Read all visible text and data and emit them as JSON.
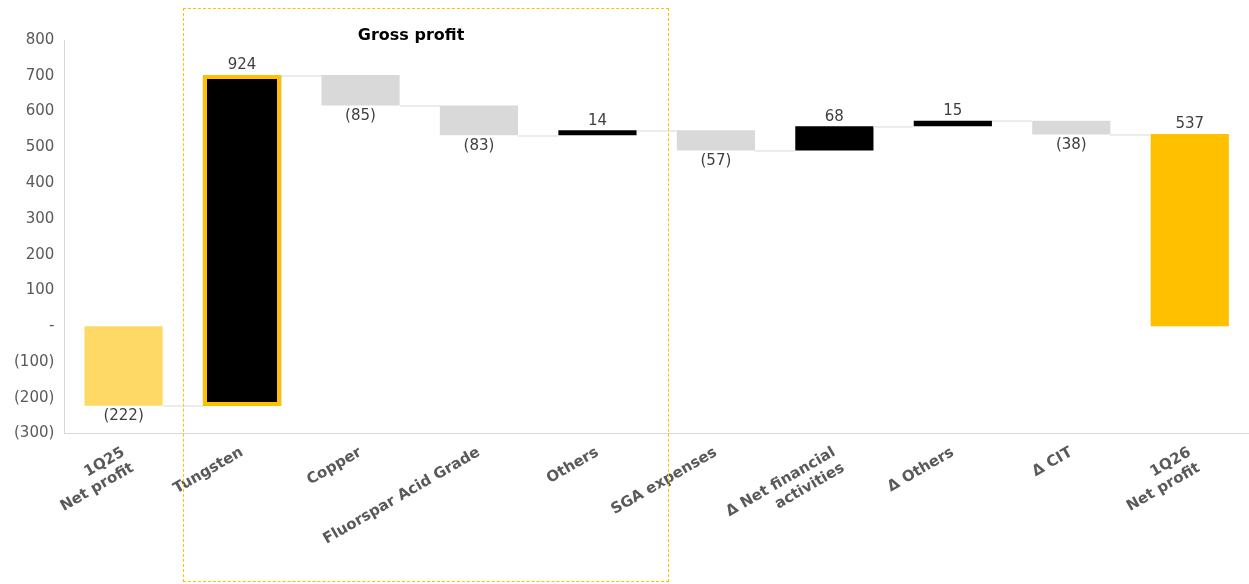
{
  "chart_data": {
    "type": "bar",
    "categories": [
      "1Q25\nNet profit",
      "Tungsten",
      "Copper",
      "Fluorspar Acid Grade",
      "Others",
      "SGA expenses",
      "Δ Net financial\nactivities",
      "Δ Others",
      "Δ CIT",
      "1Q26\nNet profit"
    ],
    "base": [
      0,
      -222,
      702,
      617,
      534,
      548,
      491,
      559,
      574,
      0
    ],
    "values": [
      -222,
      924,
      -85,
      -83,
      14,
      -57,
      68,
      15,
      -38,
      537
    ],
    "colors": [
      "#ffd966",
      "#000000",
      "#d9d9d9",
      "#d9d9d9",
      "#000000",
      "#d9d9d9",
      "#000000",
      "#000000",
      "#d9d9d9",
      "#ffc000"
    ],
    "value_labels": [
      "(222)",
      "924",
      "(85)",
      "(83)",
      "14",
      "(57)",
      "68",
      "15",
      "(38)",
      "537"
    ],
    "ylim": [
      -300,
      800
    ],
    "yticks": [
      {
        "value": -300,
        "label": "(300)"
      },
      {
        "value": -200,
        "label": "(200)"
      },
      {
        "value": -100,
        "label": "(100)"
      },
      {
        "value": 0,
        "label": "-"
      },
      100,
      200,
      300,
      400,
      500,
      600,
      700,
      800
    ],
    "annotations": [
      "Gross profit"
    ],
    "grid": false,
    "legend": false
  }
}
